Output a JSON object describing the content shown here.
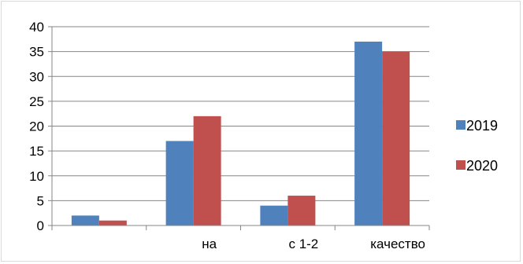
{
  "chart_data": {
    "type": "bar",
    "categories": [
      "",
      "на",
      "с 1-2",
      "качество"
    ],
    "series": [
      {
        "name": "2019",
        "values": [
          2,
          17,
          4,
          37
        ],
        "color": "#4f81bd"
      },
      {
        "name": "2020",
        "values": [
          1,
          22,
          6,
          35
        ],
        "color": "#c0504d"
      }
    ],
    "ylim": [
      0,
      40
    ],
    "yticks": [
      "0",
      "5",
      "10",
      "15",
      "20",
      "25",
      "30",
      "35",
      "40"
    ],
    "grid": true,
    "legend": "right",
    "title": "",
    "xlabel": "",
    "ylabel": ""
  }
}
